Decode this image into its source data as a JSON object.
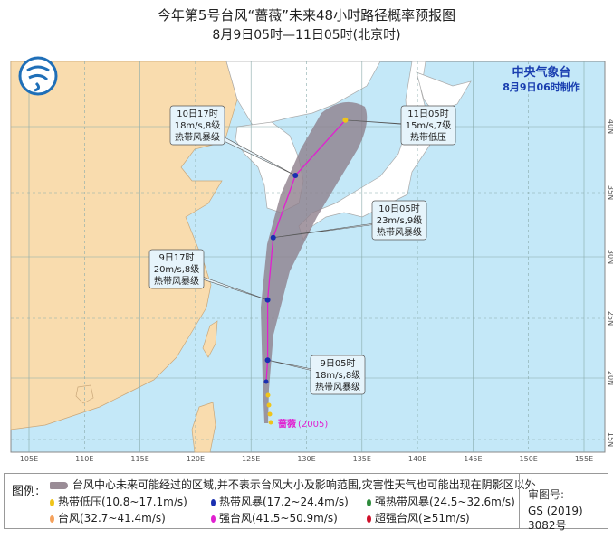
{
  "title": "今年第5号台风“蔷薇”未来48小时路径概率预报图",
  "subtitle": "8月9日05时—11日05时(北京时)",
  "agency": "中央气象台",
  "issued": "8月9日06时制作",
  "typhoon_label": "蔷薇",
  "typhoon_id": "(2005)",
  "lon_labels": [
    "105E",
    "110E",
    "115E",
    "120E",
    "125E",
    "130E",
    "135E",
    "140E",
    "145E",
    "150E",
    "155E"
  ],
  "lat_labels": [
    "40N",
    "35N",
    "30N",
    "25N",
    "20N",
    "15N"
  ],
  "forecast_points": [
    {
      "time": "9日05时",
      "wind": "18m/s,8级",
      "level": "热带风暴级",
      "lon": 126.5,
      "lat": 21.5
    },
    {
      "time": "9日17时",
      "wind": "20m/s,8级",
      "level": "热带风暴级",
      "lon": 126.5,
      "lat": 26.5
    },
    {
      "time": "10日05时",
      "wind": "23m/s,9级",
      "level": "热带风暴级",
      "lon": 127,
      "lat": 31.5
    },
    {
      "time": "10日17时",
      "wind": "18m/s,8级",
      "level": "热带风暴级",
      "lon": 129,
      "lat": 36.3
    },
    {
      "time": "11日05时",
      "wind": "15m/s,7级",
      "level": "热带低压",
      "lon": 133.5,
      "lat": 40.5
    }
  ],
  "legend": {
    "label": "图例:",
    "cone": "台风中心未来可能经过的区域,并不表示台风大小及影响范围,灾害性天气也可能出现在阴影区以外",
    "items": [
      {
        "text": "热带低压(10.8~17.1m/s)",
        "color": "#f0c419"
      },
      {
        "text": "热带风暴(17.2~24.4m/s)",
        "color": "#1a2fb0"
      },
      {
        "text": "强热带风暴(24.5~32.6m/s)",
        "color": "#2e8b3c"
      },
      {
        "text": "台风(32.7~41.4m/s)",
        "color": "#f5a25d"
      },
      {
        "text": "强台风(41.5~50.9m/s)",
        "color": "#e020d0"
      },
      {
        "text": "超强台风(≥51m/s)",
        "color": "#d0102a"
      }
    ],
    "review_label": "审图号:",
    "review_no": "GS (2019) 3082号"
  },
  "colors": {
    "sea": "#c4e8f8",
    "china": "#f9dcae",
    "other_land": "#ffffff",
    "cone": "#8e7f8c",
    "track": "#e020d0"
  }
}
